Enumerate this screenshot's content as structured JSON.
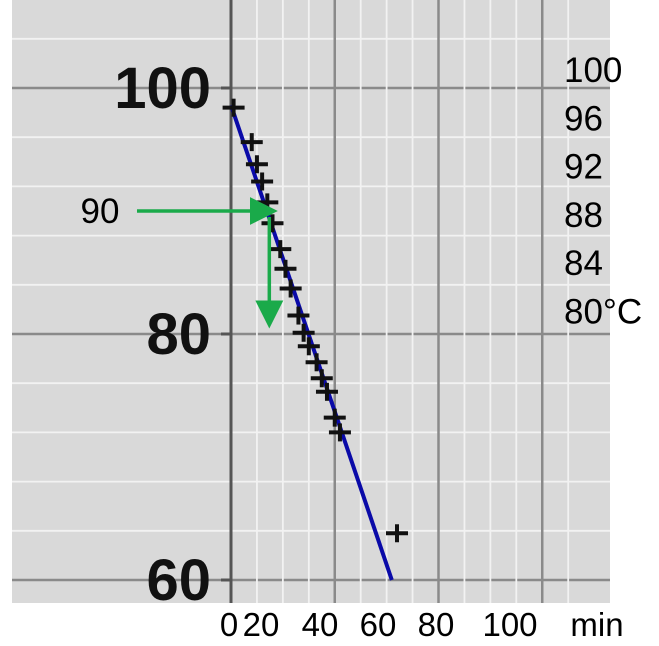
{
  "chart_data": {
    "type": "scatter",
    "title": "",
    "xlabel": "",
    "ylabel": "",
    "x_unit": "min",
    "y_unit": "°C",
    "xlim": [
      0,
      120
    ],
    "ylim": [
      60,
      102
    ],
    "grid": true,
    "original_y_ticks": [
      "100",
      "80",
      "60"
    ],
    "right_scale_labels": [
      "100",
      "96",
      "92",
      "88",
      "84",
      "80°C"
    ],
    "bottom_scale_labels": [
      "0",
      "20",
      "40",
      "60",
      "80",
      "100",
      "min"
    ],
    "series": [
      {
        "type": "scatter",
        "marker": "+",
        "x": [
          1,
          8,
          10,
          12,
          14,
          16,
          19,
          21,
          23,
          26,
          28,
          30,
          33,
          35,
          37,
          40,
          42,
          64
        ],
        "y": [
          98.4,
          95.6,
          93.8,
          92.4,
          90.7,
          89.0,
          86.9,
          85.3,
          83.7,
          81.5,
          80.1,
          79.0,
          77.7,
          76.4,
          75.3,
          73.2,
          72.0,
          63.8
        ]
      },
      {
        "type": "line",
        "color": "#0a0aa8",
        "x": [
          0,
          62
        ],
        "y": [
          98.6,
          60
        ]
      }
    ],
    "annotation": {
      "label": "90",
      "color": "#1aaa4a",
      "value": 90,
      "x_at_value": 14,
      "arrow_down_to_y": 80
    }
  }
}
